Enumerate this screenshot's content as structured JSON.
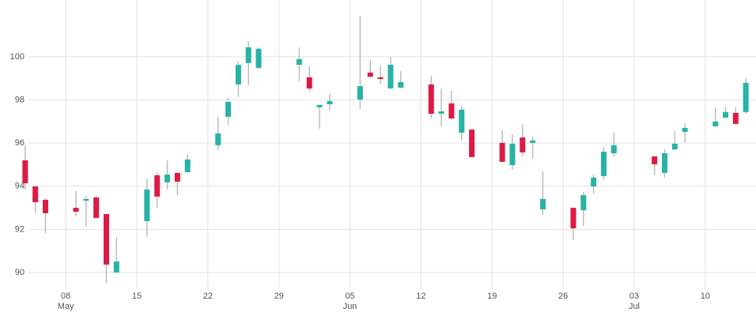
{
  "chart_data": {
    "type": "candlestick",
    "x": [
      "05-04",
      "05-05",
      "05-06",
      "05-09",
      "05-10",
      "05-11",
      "05-12",
      "05-13",
      "05-16",
      "05-17",
      "05-18",
      "05-19",
      "05-20",
      "05-23",
      "05-24",
      "05-25",
      "05-26",
      "05-27",
      "05-31",
      "06-01",
      "06-02",
      "06-03",
      "06-06",
      "06-07",
      "06-08",
      "06-09",
      "06-10",
      "06-13",
      "06-14",
      "06-15",
      "06-16",
      "06-17",
      "06-20",
      "06-21",
      "06-22",
      "06-23",
      "06-24",
      "06-27",
      "06-28",
      "06-29",
      "06-30",
      "07-01",
      "07-05",
      "07-06",
      "07-07",
      "07-08",
      "07-11",
      "07-12",
      "07-13",
      "07-14"
    ],
    "open": [
      95.2,
      93.99,
      93.37,
      93.0,
      93.33,
      93.48,
      92.71,
      90.0,
      92.38,
      94.51,
      94.18,
      94.62,
      94.65,
      95.9,
      97.22,
      98.72,
      99.71,
      99.49,
      99.63,
      99.05,
      97.66,
      97.8,
      98.02,
      99.27,
      99.05,
      98.53,
      98.57,
      98.72,
      97.36,
      97.84,
      96.48,
      96.63,
      96.01,
      94.98,
      96.26,
      96.01,
      92.93,
      93.0,
      92.89,
      93.99,
      94.47,
      95.53,
      95.38,
      94.62,
      95.71,
      96.52,
      96.78,
      97.18,
      97.4,
      97.44
    ],
    "high": [
      95.9,
      94.0,
      93.44,
      93.77,
      93.55,
      93.55,
      92.71,
      91.65,
      94.36,
      94.65,
      95.2,
      94.62,
      95.46,
      97.22,
      98.1,
      99.78,
      100.73,
      100.44,
      100.44,
      99.56,
      97.77,
      98.28,
      101.9,
      99.85,
      99.56,
      100.0,
      99.34,
      99.12,
      98.5,
      98.42,
      97.73,
      96.63,
      96.59,
      96.41,
      96.89,
      96.26,
      94.69,
      93.0,
      93.74,
      94.54,
      95.82,
      96.48,
      95.38,
      95.71,
      96.56,
      96.92,
      97.66,
      97.69,
      97.66,
      99.01
    ],
    "low": [
      93.85,
      92.75,
      91.83,
      92.6,
      92.12,
      92.53,
      89.52,
      90.0,
      91.65,
      93.0,
      93.85,
      93.59,
      94.65,
      95.68,
      96.85,
      98.13,
      98.68,
      99.41,
      98.86,
      98.39,
      96.67,
      97.51,
      97.58,
      99.01,
      98.75,
      98.53,
      98.57,
      97.14,
      96.78,
      97.14,
      96.12,
      95.35,
      95.13,
      94.76,
      95.38,
      95.27,
      92.67,
      91.5,
      92.16,
      93.66,
      94.29,
      95.38,
      94.51,
      94.4,
      95.68,
      96.04,
      96.78,
      97.18,
      96.89,
      97.36
    ],
    "close": [
      94.14,
      93.26,
      92.75,
      92.82,
      93.41,
      92.53,
      90.37,
      90.51,
      93.85,
      93.52,
      94.54,
      94.21,
      95.24,
      96.45,
      97.91,
      99.63,
      100.44,
      100.37,
      99.89,
      98.53,
      97.77,
      97.95,
      98.64,
      99.08,
      98.97,
      99.63,
      98.83,
      97.36,
      97.47,
      97.14,
      97.55,
      95.35,
      95.13,
      95.97,
      95.57,
      96.12,
      93.41,
      92.05,
      93.59,
      94.4,
      95.6,
      95.9,
      95.02,
      95.53,
      95.97,
      96.7,
      97.0,
      97.44,
      96.89,
      98.79
    ],
    "up_color": "#26b3a6",
    "down_color": "#dc1a45",
    "wick_color": "#bdbdbd",
    "xlim": [
      "05-03",
      "07-15"
    ],
    "xticks": [
      {
        "value": "05-08",
        "label": "08"
      },
      {
        "value": "05-15",
        "label": "15"
      },
      {
        "value": "05-22",
        "label": "22"
      },
      {
        "value": "05-29",
        "label": "29"
      },
      {
        "value": "06-05",
        "label": "05"
      },
      {
        "value": "06-12",
        "label": "12"
      },
      {
        "value": "06-19",
        "label": "19"
      },
      {
        "value": "06-26",
        "label": "26"
      },
      {
        "value": "07-03",
        "label": "03"
      },
      {
        "value": "07-10",
        "label": "10"
      }
    ],
    "month_labels": [
      {
        "value": "05-08",
        "label": "May"
      },
      {
        "value": "06-05",
        "label": "Jun"
      },
      {
        "value": "07-03",
        "label": "Jul"
      }
    ],
    "ylim": [
      89.45,
      101.9
    ],
    "yticks": [
      90,
      92,
      94,
      96,
      98,
      100
    ],
    "grid": true
  }
}
